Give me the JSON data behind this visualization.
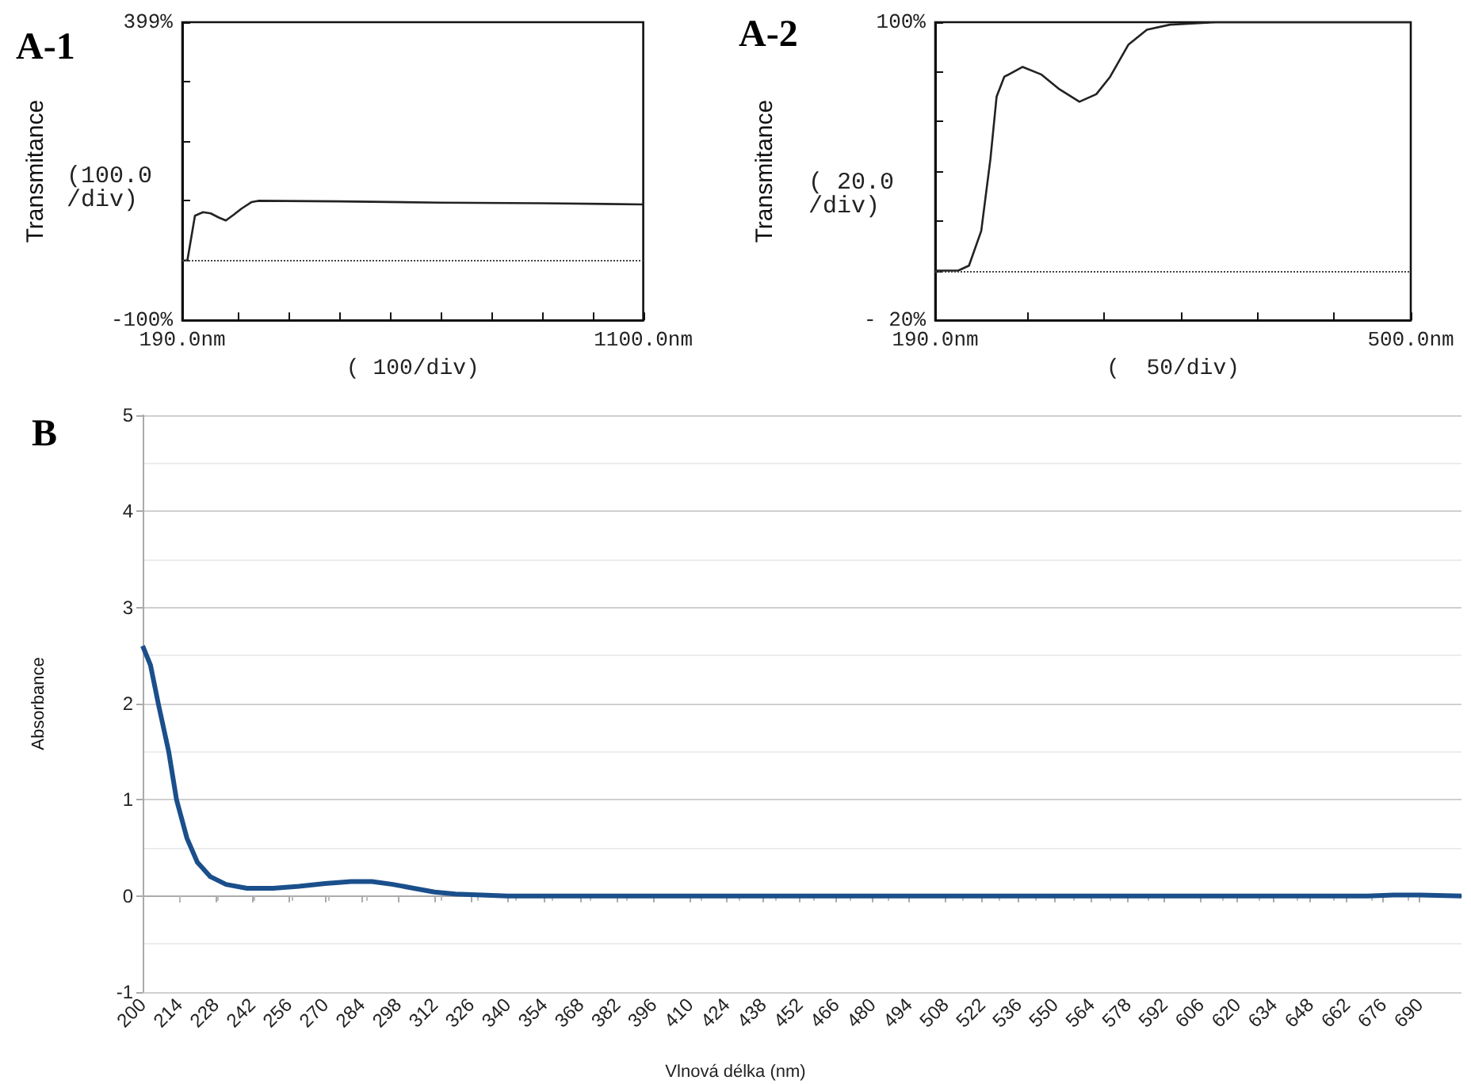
{
  "chart_data": [
    {
      "type": "line",
      "title": "A-1",
      "ylabel": "Transmitance",
      "xlabel": "( 100/div)",
      "annotations": [
        "(100.0\n/div)"
      ],
      "grid": false,
      "line_style": "solid",
      "x": [
        190,
        200,
        215,
        231,
        246,
        262,
        276,
        292,
        307,
        327,
        340,
        500,
        700,
        900,
        1100
      ],
      "series": [
        {
          "color": "#222222",
          "values": [
            0,
            0,
            75,
            81,
            79,
            72,
            67,
            77,
            87,
            98,
            100,
            99,
            97,
            96,
            94
          ]
        }
      ],
      "xlim": [
        190,
        1100
      ],
      "xticks": [
        {
          "value": 190,
          "label": "190.0nm"
        },
        {
          "value": 300,
          "label": null
        },
        {
          "value": 400,
          "label": null
        },
        {
          "value": 500,
          "label": null
        },
        {
          "value": 600,
          "label": null
        },
        {
          "value": 700,
          "label": null
        },
        {
          "value": 800,
          "label": null
        },
        {
          "value": 900,
          "label": null
        },
        {
          "value": 1000,
          "label": null
        },
        {
          "value": 1100,
          "label": "1100.0nm"
        }
      ],
      "ylim": [
        -100,
        399
      ],
      "yticks": [
        {
          "value": -100,
          "label": "-100%"
        },
        {
          "value": 0,
          "label": null
        },
        {
          "value": 100,
          "label": null
        },
        {
          "value": 200,
          "label": null
        },
        {
          "value": 300,
          "label": null
        },
        {
          "value": 399,
          "label": "399%"
        }
      ],
      "ref_lines": [
        {
          "axis": "y",
          "value": 0,
          "line_style": "dotted",
          "color": "#444444"
        }
      ]
    },
    {
      "type": "line",
      "title": "A-2",
      "ylabel": "Transmitance",
      "xlabel": "(  50/div)",
      "annotations": [
        "( 20.0\n/div)"
      ],
      "grid": false,
      "line_style": "solid",
      "x": [
        190,
        205,
        212,
        220,
        226,
        230,
        235,
        247,
        259,
        271,
        284,
        295,
        304,
        316,
        328,
        343,
        373,
        420,
        500
      ],
      "series": [
        {
          "color": "#222222",
          "values": [
            0,
            0,
            2,
            16,
            45,
            70,
            78,
            82,
            79,
            73,
            68,
            71,
            78,
            91,
            97,
            99,
            100,
            100,
            100
          ]
        }
      ],
      "xlim": [
        190,
        500
      ],
      "xticks": [
        {
          "value": 190,
          "label": "190.0nm"
        },
        {
          "value": 250,
          "label": null
        },
        {
          "value": 300,
          "label": null
        },
        {
          "value": 350,
          "label": null
        },
        {
          "value": 400,
          "label": null
        },
        {
          "value": 450,
          "label": null
        },
        {
          "value": 500,
          "label": "500.0nm"
        }
      ],
      "ylim": [
        -20,
        100
      ],
      "yticks": [
        {
          "value": -20,
          "label": "- 20%"
        },
        {
          "value": 0,
          "label": null
        },
        {
          "value": 20,
          "label": null
        },
        {
          "value": 40,
          "label": null
        },
        {
          "value": 60,
          "label": null
        },
        {
          "value": 80,
          "label": null
        },
        {
          "value": 100,
          "label": "100%"
        }
      ],
      "ref_lines": [
        {
          "axis": "y",
          "value": 0,
          "line_style": "dotted",
          "color": "#444444"
        }
      ]
    },
    {
      "type": "line",
      "title": "B",
      "ylabel": "Absorbance",
      "xlabel": "Vlnová délka (nm)",
      "grid": "y",
      "line_style": "solid",
      "x": [
        200,
        203,
        206,
        210,
        213,
        217,
        221,
        226,
        232,
        240,
        250,
        260,
        270,
        280,
        288,
        296,
        304,
        312,
        320,
        330,
        340,
        400,
        500,
        600,
        670,
        680,
        690,
        706
      ],
      "series": [
        {
          "color": "#1a4f8b",
          "values": [
            2.6,
            2.4,
            2.0,
            1.5,
            1.0,
            0.6,
            0.35,
            0.2,
            0.12,
            0.08,
            0.08,
            0.1,
            0.13,
            0.15,
            0.15,
            0.12,
            0.08,
            0.04,
            0.02,
            0.01,
            0,
            0,
            0,
            0,
            0,
            0.01,
            0.01,
            0
          ]
        }
      ],
      "xlim": [
        200,
        706
      ],
      "xticks": [
        200,
        214,
        228,
        242,
        256,
        270,
        284,
        298,
        312,
        326,
        340,
        354,
        368,
        382,
        396,
        410,
        424,
        438,
        452,
        466,
        480,
        494,
        508,
        522,
        536,
        550,
        564,
        578,
        592,
        606,
        620,
        634,
        648,
        662,
        676,
        690
      ],
      "ylim": [
        -1,
        5
      ],
      "yticks": [
        -1,
        0,
        1,
        2,
        3,
        4,
        5
      ]
    }
  ]
}
